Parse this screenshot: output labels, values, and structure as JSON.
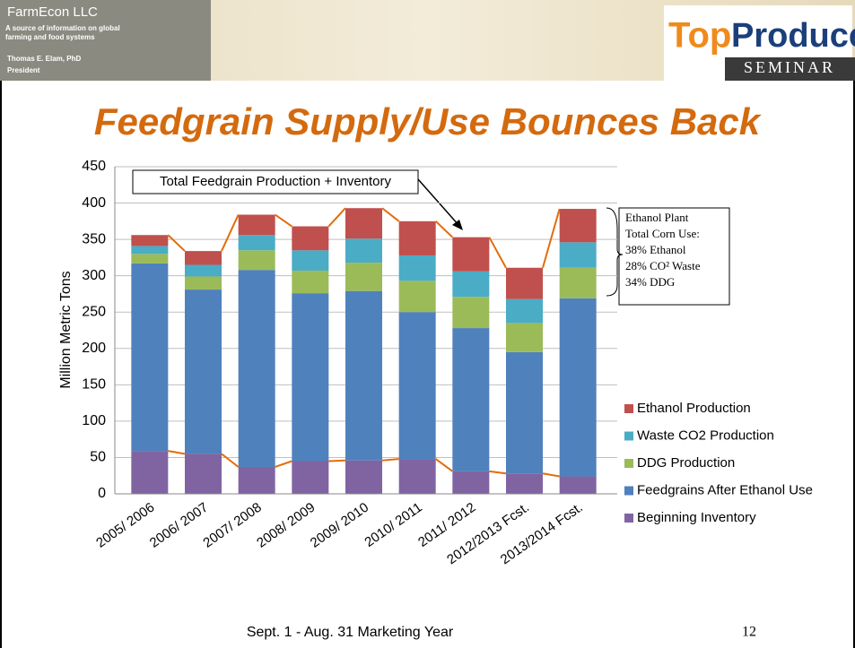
{
  "header": {
    "company": "FarmEcon LLC",
    "tagline": "A source of information on global farming and food systems",
    "person": "Thomas E. Elam, PhD",
    "role": "President",
    "logo_top": "Top",
    "logo_producer": "Producer",
    "logo_seminar": "SEMINAR"
  },
  "slide_title": "Feedgrain Supply/Use Bounces Back",
  "chart_data": {
    "type": "stacked_bar",
    "categories": [
      "2005/ 2006",
      "2006/ 2007",
      "2007/ 2008",
      "2008/ 2009",
      "2009/ 2010",
      "2010/ 2011",
      "2011/ 2012",
      "2012/2013 Fcst.",
      "2013/2014 Fcst."
    ],
    "series": [
      {
        "name": "Beginning Inventory",
        "color": "#8064a2",
        "values": [
          59,
          55,
          37,
          45,
          46,
          48,
          31,
          28,
          24
        ]
      },
      {
        "name": "Feedgrains After Ethanol Use",
        "color": "#4f81bd",
        "values": [
          258,
          226,
          271,
          231,
          233,
          202,
          197,
          167,
          245
        ]
      },
      {
        "name": "DDG Production",
        "color": "#9bbb59",
        "values": [
          13,
          18,
          27,
          31,
          39,
          43,
          43,
          40,
          42
        ]
      },
      {
        "name": "Waste CO2 Production",
        "color": "#4bacc6",
        "values": [
          11,
          16,
          21,
          28,
          33,
          35,
          35,
          33,
          35
        ]
      },
      {
        "name": "Ethanol Production",
        "color": "#c0504d",
        "values": [
          15,
          19,
          28,
          33,
          42,
          47,
          47,
          43,
          46
        ]
      }
    ],
    "ylim": [
      0,
      450
    ],
    "yticks": [
      0,
      50,
      100,
      150,
      200,
      250,
      300,
      350,
      400,
      450
    ],
    "ylabel": "Million Metric Tons",
    "xlabel": "Sept. 1 - Aug. 31 Marketing Year",
    "grid": true,
    "legend": "right",
    "connector_color": "#e46c0a",
    "annotation": "Total Feedgrain Production + Inventory",
    "note": [
      "Ethanol Plant",
      "Total Corn Use:",
      "38% Ethanol",
      "28% CO² Waste",
      "34% DDG"
    ]
  },
  "page_number": "12"
}
